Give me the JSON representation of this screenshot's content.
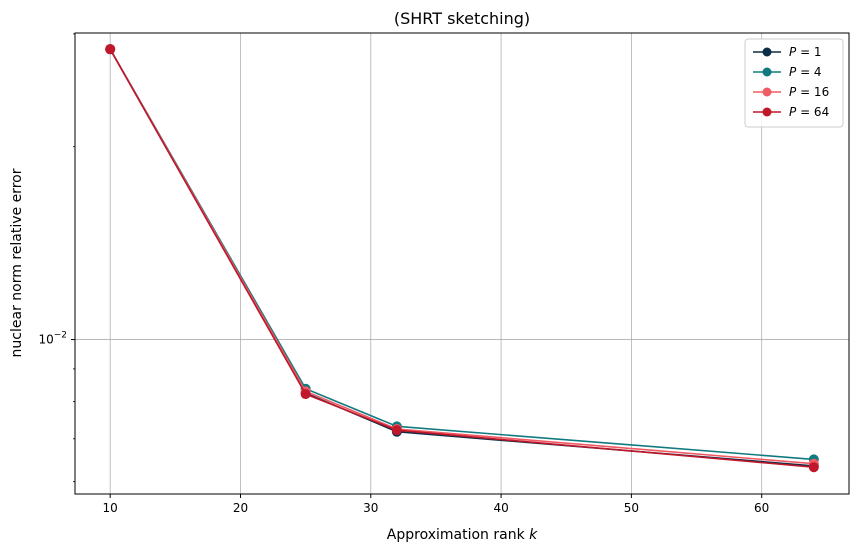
{
  "chart_data": {
    "type": "line",
    "title": "(SHRT sketching)",
    "xlabel": "Approximation rank ",
    "xlabel_var": "k",
    "ylabel": "nuclear norm relative error",
    "x": [
      10,
      25,
      32,
      64
    ],
    "xlim": [
      7.3,
      66.7
    ],
    "xticks": [
      10,
      20,
      30,
      40,
      50,
      60
    ],
    "yscale": "log",
    "ylim": [
      0.00574,
      0.0301
    ],
    "yticks": [
      {
        "value": 0.01,
        "base": "10",
        "exp": "−2"
      }
    ],
    "grid": true,
    "legend_position": "top-right",
    "series": [
      {
        "name_var": "P",
        "name_value": "= 1",
        "color": "#0b2e47",
        "values": [
          0.0284,
          0.00825,
          0.00718,
          0.00635
        ]
      },
      {
        "name_var": "P",
        "name_value": "= 4",
        "color": "#117a80",
        "values": [
          0.0284,
          0.00838,
          0.00732,
          0.0065
        ]
      },
      {
        "name_var": "P",
        "name_value": "= 16",
        "color": "#f05a63",
        "values": [
          0.0284,
          0.0083,
          0.00725,
          0.0064
        ]
      },
      {
        "name_var": "P",
        "name_value": "= 64",
        "color": "#c0172a",
        "values": [
          0.0284,
          0.00822,
          0.00722,
          0.00632
        ]
      }
    ]
  }
}
